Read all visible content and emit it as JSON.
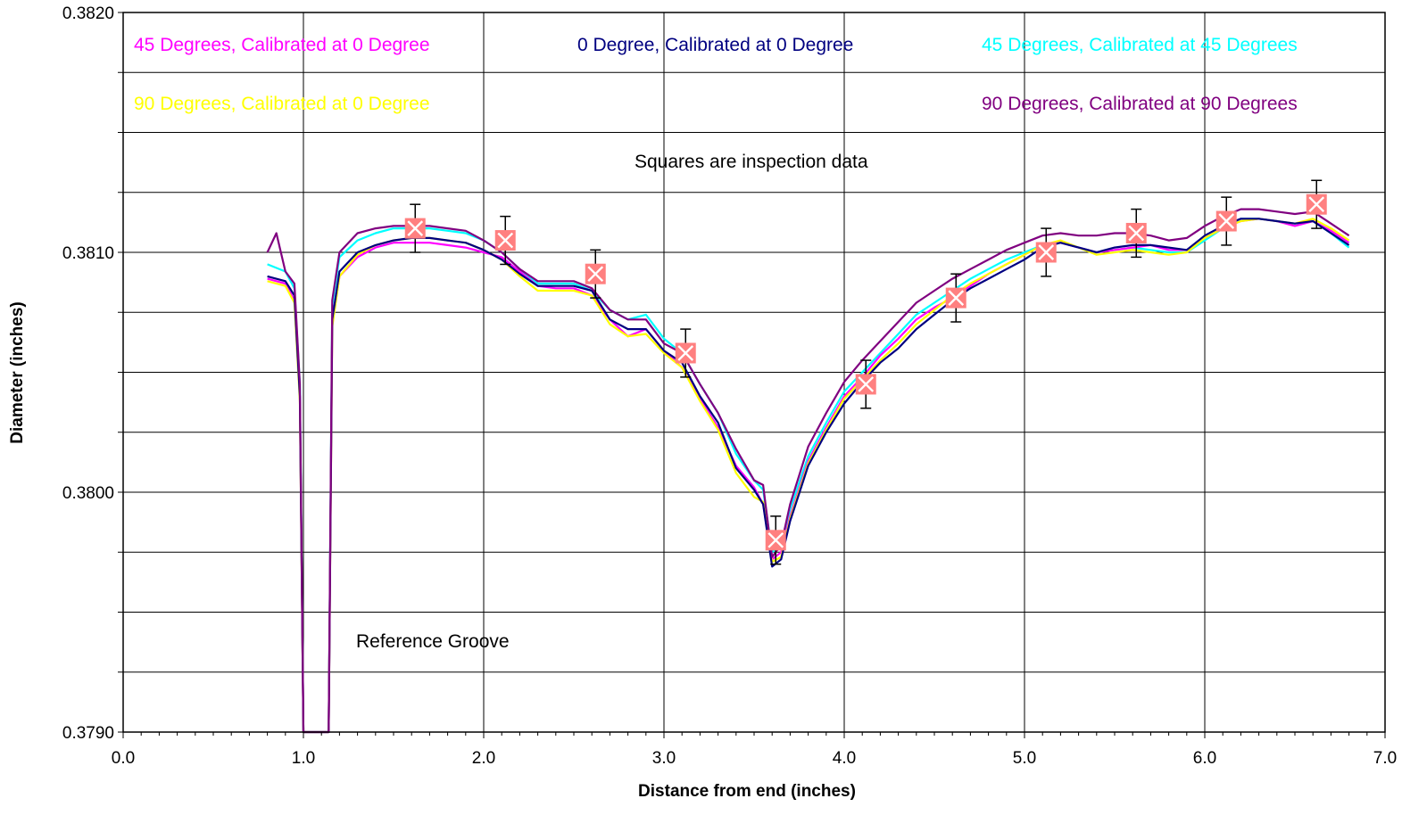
{
  "chart_data": {
    "type": "line",
    "xlabel": "Distance from end (inches)",
    "ylabel": "Diameter (inches)",
    "xlim": [
      0.0,
      7.0
    ],
    "ylim": [
      0.379,
      0.382
    ],
    "x_ticks": [
      "0.0",
      "1.0",
      "2.0",
      "3.0",
      "4.0",
      "5.0",
      "6.0",
      "7.0"
    ],
    "y_ticks": [
      "0.3790",
      "0.3800",
      "0.3810",
      "0.3820"
    ],
    "grid": true,
    "annotations": {
      "squares_note": "Squares are inspection data",
      "groove_note": "Reference Groove"
    },
    "legend_entries": [
      {
        "text": "45 Degrees, Calibrated at 0 Degree",
        "color": "#ff00ff"
      },
      {
        "text": "0 Degree, Calibrated at 0 Degree",
        "color": "#000080"
      },
      {
        "text": "45 Degrees, Calibrated at 45 Degrees",
        "color": "#00ffff"
      },
      {
        "text": "90 Degrees, Calibrated at 0 Degree",
        "color": "#ffff00"
      },
      {
        "text": "90 Degrees, Calibrated at 90 Degrees",
        "color": "#800080"
      }
    ],
    "series": [
      {
        "name": "45 Degrees, Calibrated at 0 Degree",
        "color": "#ff00ff",
        "x": [
          0.8,
          0.9,
          0.95,
          0.98,
          1.0,
          1.02,
          1.05,
          1.1,
          1.14,
          1.16,
          1.2,
          1.3,
          1.4,
          1.5,
          1.6,
          1.7,
          1.8,
          1.9,
          2.0,
          2.1,
          2.2,
          2.3,
          2.4,
          2.5,
          2.6,
          2.7,
          2.8,
          2.9,
          3.0,
          3.1,
          3.2,
          3.3,
          3.4,
          3.5,
          3.55,
          3.6,
          3.65,
          3.7,
          3.8,
          3.9,
          4.0,
          4.1,
          4.2,
          4.3,
          4.4,
          4.5,
          4.6,
          4.7,
          4.8,
          4.9,
          5.0,
          5.1,
          5.2,
          5.3,
          5.4,
          5.5,
          5.6,
          5.7,
          5.8,
          5.9,
          6.0,
          6.1,
          6.2,
          6.3,
          6.4,
          6.5,
          6.6,
          6.7,
          6.8
        ],
        "y": [
          0.38089,
          0.38087,
          0.3808,
          0.3804,
          0.379,
          0.379,
          0.379,
          0.379,
          0.379,
          0.3807,
          0.3809,
          0.38098,
          0.38102,
          0.38104,
          0.38104,
          0.38104,
          0.38103,
          0.38102,
          0.381,
          0.38098,
          0.38092,
          0.38086,
          0.38085,
          0.38085,
          0.38082,
          0.38072,
          0.38065,
          0.38068,
          0.38059,
          0.38052,
          0.38039,
          0.38027,
          0.38011,
          0.38002,
          0.37995,
          0.37972,
          0.37975,
          0.3799,
          0.38013,
          0.38027,
          0.3804,
          0.38048,
          0.38057,
          0.38064,
          0.38072,
          0.38077,
          0.38081,
          0.38086,
          0.38091,
          0.38095,
          0.38099,
          0.38103,
          0.38104,
          0.38102,
          0.381,
          0.38101,
          0.38102,
          0.38103,
          0.38101,
          0.38101,
          0.38106,
          0.3811,
          0.38113,
          0.38114,
          0.38113,
          0.38111,
          0.38113,
          0.38109,
          0.38104
        ]
      },
      {
        "name": "0 Degree, Calibrated at 0 Degree",
        "color": "#000080",
        "x": [
          0.8,
          0.9,
          0.95,
          0.98,
          1.0,
          1.02,
          1.05,
          1.1,
          1.14,
          1.16,
          1.2,
          1.3,
          1.4,
          1.5,
          1.6,
          1.7,
          1.8,
          1.9,
          2.0,
          2.1,
          2.2,
          2.3,
          2.4,
          2.5,
          2.6,
          2.7,
          2.8,
          2.9,
          3.0,
          3.1,
          3.2,
          3.3,
          3.4,
          3.5,
          3.55,
          3.6,
          3.65,
          3.7,
          3.8,
          3.9,
          4.0,
          4.1,
          4.2,
          4.3,
          4.4,
          4.5,
          4.6,
          4.7,
          4.8,
          4.9,
          5.0,
          5.1,
          5.2,
          5.3,
          5.4,
          5.5,
          5.6,
          5.7,
          5.8,
          5.9,
          6.0,
          6.1,
          6.2,
          6.3,
          6.4,
          6.5,
          6.6,
          6.7,
          6.8
        ],
        "y": [
          0.3809,
          0.38088,
          0.38082,
          0.3804,
          0.379,
          0.379,
          0.379,
          0.379,
          0.379,
          0.38072,
          0.38092,
          0.381,
          0.38103,
          0.38105,
          0.38106,
          0.38106,
          0.38105,
          0.38104,
          0.38101,
          0.38097,
          0.38091,
          0.38086,
          0.38086,
          0.38086,
          0.38084,
          0.38072,
          0.38068,
          0.38068,
          0.38059,
          0.38054,
          0.3804,
          0.38029,
          0.3801,
          0.38001,
          0.37995,
          0.37969,
          0.37972,
          0.37988,
          0.38011,
          0.38025,
          0.38037,
          0.38046,
          0.38054,
          0.3806,
          0.38068,
          0.38074,
          0.3808,
          0.38085,
          0.38089,
          0.38093,
          0.38097,
          0.38102,
          0.38104,
          0.38102,
          0.381,
          0.38102,
          0.38103,
          0.38103,
          0.38102,
          0.38101,
          0.38107,
          0.38111,
          0.38114,
          0.38114,
          0.38113,
          0.38112,
          0.38113,
          0.38108,
          0.38103
        ]
      },
      {
        "name": "45 Degrees, Calibrated at 45 Degrees",
        "color": "#00ffff",
        "x": [
          0.8,
          0.9,
          0.95,
          0.98,
          1.0,
          1.02,
          1.05,
          1.1,
          1.14,
          1.16,
          1.2,
          1.3,
          1.4,
          1.5,
          1.6,
          1.7,
          1.8,
          1.9,
          2.0,
          2.1,
          2.2,
          2.3,
          2.4,
          2.5,
          2.6,
          2.7,
          2.8,
          2.9,
          3.0,
          3.1,
          3.2,
          3.3,
          3.4,
          3.5,
          3.55,
          3.6,
          3.65,
          3.7,
          3.8,
          3.9,
          4.0,
          4.1,
          4.2,
          4.3,
          4.4,
          4.5,
          4.6,
          4.7,
          4.8,
          4.9,
          5.0,
          5.1,
          5.2,
          5.3,
          5.4,
          5.5,
          5.6,
          5.7,
          5.8,
          5.9,
          6.0,
          6.1,
          6.2,
          6.3,
          6.4,
          6.5,
          6.6,
          6.7,
          6.8
        ],
        "y": [
          0.38095,
          0.38092,
          0.38085,
          0.38045,
          0.379,
          0.379,
          0.379,
          0.379,
          0.379,
          0.38078,
          0.38098,
          0.38105,
          0.38108,
          0.3811,
          0.3811,
          0.3811,
          0.38109,
          0.38108,
          0.38105,
          0.381,
          0.38093,
          0.38087,
          0.38087,
          0.38087,
          0.38084,
          0.38076,
          0.38072,
          0.38074,
          0.38064,
          0.38058,
          0.38045,
          0.38033,
          0.38016,
          0.38005,
          0.38001,
          0.37975,
          0.37978,
          0.37993,
          0.38015,
          0.38029,
          0.38042,
          0.3805,
          0.38058,
          0.38066,
          0.38074,
          0.38079,
          0.38084,
          0.38089,
          0.38093,
          0.38097,
          0.381,
          0.38103,
          0.38104,
          0.38102,
          0.381,
          0.38101,
          0.38102,
          0.38101,
          0.381,
          0.381,
          0.38105,
          0.3811,
          0.38114,
          0.38114,
          0.38113,
          0.38112,
          0.38113,
          0.38108,
          0.38102
        ]
      },
      {
        "name": "90 Degrees, Calibrated at 0 Degree",
        "color": "#ffff00",
        "x": [
          0.8,
          0.9,
          0.95,
          0.98,
          1.0,
          1.02,
          1.05,
          1.1,
          1.14,
          1.16,
          1.2,
          1.3,
          1.4,
          1.5,
          1.6,
          1.7,
          1.8,
          1.9,
          2.0,
          2.1,
          2.2,
          2.3,
          2.4,
          2.5,
          2.6,
          2.7,
          2.8,
          2.9,
          3.0,
          3.1,
          3.2,
          3.3,
          3.4,
          3.5,
          3.55,
          3.6,
          3.65,
          3.7,
          3.8,
          3.9,
          4.0,
          4.1,
          4.2,
          4.3,
          4.4,
          4.5,
          4.6,
          4.7,
          4.8,
          4.9,
          5.0,
          5.1,
          5.2,
          5.3,
          5.4,
          5.5,
          5.6,
          5.7,
          5.8,
          5.9,
          6.0,
          6.1,
          6.2,
          6.3,
          6.4,
          6.5,
          6.6,
          6.7,
          6.8
        ],
        "y": [
          0.38088,
          0.38086,
          0.38079,
          0.38038,
          0.379,
          0.379,
          0.379,
          0.379,
          0.379,
          0.38069,
          0.3809,
          0.38099,
          0.38103,
          0.38105,
          0.38106,
          0.38106,
          0.38105,
          0.38104,
          0.38101,
          0.38097,
          0.3809,
          0.38084,
          0.38084,
          0.38084,
          0.38082,
          0.3807,
          0.38065,
          0.38066,
          0.38058,
          0.38052,
          0.38038,
          0.38026,
          0.38008,
          0.37998,
          0.37996,
          0.37971,
          0.37973,
          0.37989,
          0.38012,
          0.38026,
          0.38039,
          0.38047,
          0.38055,
          0.38062,
          0.3807,
          0.38076,
          0.38082,
          0.38087,
          0.38091,
          0.38095,
          0.38099,
          0.38103,
          0.38105,
          0.38102,
          0.38099,
          0.381,
          0.38101,
          0.381,
          0.38099,
          0.381,
          0.38106,
          0.3811,
          0.38113,
          0.38114,
          0.38113,
          0.38112,
          0.38114,
          0.3811,
          0.38105
        ]
      },
      {
        "name": "90 Degrees, Calibrated at 90 Degrees",
        "color": "#800080",
        "x": [
          0.8,
          0.85,
          0.9,
          0.95,
          0.98,
          1.0,
          1.02,
          1.05,
          1.1,
          1.14,
          1.16,
          1.2,
          1.3,
          1.4,
          1.5,
          1.6,
          1.7,
          1.8,
          1.9,
          2.0,
          2.1,
          2.2,
          2.3,
          2.4,
          2.5,
          2.6,
          2.7,
          2.8,
          2.9,
          3.0,
          3.1,
          3.2,
          3.3,
          3.4,
          3.5,
          3.55,
          3.6,
          3.65,
          3.7,
          3.8,
          3.9,
          4.0,
          4.1,
          4.2,
          4.3,
          4.4,
          4.5,
          4.6,
          4.7,
          4.8,
          4.9,
          5.0,
          5.1,
          5.2,
          5.3,
          5.4,
          5.5,
          5.6,
          5.7,
          5.8,
          5.9,
          6.0,
          6.1,
          6.2,
          6.3,
          6.4,
          6.5,
          6.6,
          6.7,
          6.8
        ],
        "y": [
          0.381,
          0.38108,
          0.38092,
          0.38087,
          0.38045,
          0.379,
          0.379,
          0.379,
          0.379,
          0.379,
          0.3808,
          0.381,
          0.38108,
          0.3811,
          0.38111,
          0.38111,
          0.38111,
          0.3811,
          0.38109,
          0.38105,
          0.381,
          0.38093,
          0.38088,
          0.38088,
          0.38088,
          0.38085,
          0.38076,
          0.38072,
          0.38072,
          0.38062,
          0.38058,
          0.38045,
          0.38033,
          0.38018,
          0.38005,
          0.38003,
          0.37973,
          0.37978,
          0.37995,
          0.38019,
          0.38033,
          0.38046,
          0.38055,
          0.38063,
          0.38071,
          0.38079,
          0.38084,
          0.38089,
          0.38093,
          0.38097,
          0.38101,
          0.38104,
          0.38107,
          0.38108,
          0.38107,
          0.38107,
          0.38108,
          0.38108,
          0.38107,
          0.38105,
          0.38106,
          0.38111,
          0.38115,
          0.38118,
          0.38118,
          0.38117,
          0.38116,
          0.38117,
          0.38112,
          0.38107
        ]
      }
    ],
    "inspection_data": {
      "name": "Squares are inspection data",
      "marker": "square-x",
      "color": "#ff8080",
      "x": [
        1.62,
        2.12,
        2.62,
        3.12,
        3.62,
        4.12,
        4.62,
        5.12,
        5.62,
        6.12,
        6.62
      ],
      "y": [
        0.3811,
        0.38105,
        0.38091,
        0.38058,
        0.3798,
        0.38045,
        0.38081,
        0.381,
        0.38108,
        0.38113,
        0.3812
      ],
      "error": 0.0001
    }
  }
}
